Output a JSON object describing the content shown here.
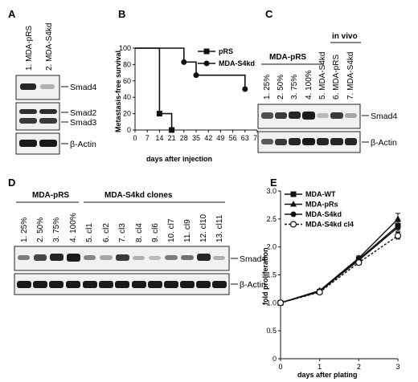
{
  "panels": {
    "A": {
      "letter": "A",
      "lanes": [
        "1. MDA-pRS",
        "2. MDA-S4kd"
      ],
      "blot_labels": [
        "Smad4",
        "Smad2",
        "Smad3",
        "β-Actin"
      ]
    },
    "C": {
      "letter": "C",
      "group_labels": [
        "MDA-pRS",
        "in vivo"
      ],
      "lanes": [
        "1. 25%",
        "2. 50%",
        "3. 75%",
        "4. 100%",
        "5. MDA-S4kd",
        "6. MDA-pRS",
        "7. MDA-S4kd"
      ],
      "blot_labels": [
        "Smad4",
        "β-Actin"
      ]
    },
    "D": {
      "letter": "D",
      "group_labels": [
        "MDA-pRS",
        "MDA-S4kd clones"
      ],
      "lanes": [
        "1. 25%",
        "2. 50%",
        "3. 75%",
        "4. 100%",
        "5. cl1",
        "6. cl2",
        "7. cl3",
        "8. cl4",
        "9. cl6",
        "10. cl7",
        "11. cl9",
        "12. cl10",
        "13. cl11"
      ],
      "blot_labels": [
        "Smad4",
        "β-Actin"
      ]
    }
  },
  "chart_data": [
    {
      "panel": "B",
      "type": "line",
      "step": true,
      "xlabel": "days after injection",
      "ylabel": "Metastasis-free survival",
      "xlim": [
        0,
        70
      ],
      "ylim": [
        0,
        100
      ],
      "xticks": [
        "0",
        "7",
        "14",
        "21",
        "28",
        "35",
        "42",
        "49",
        "56",
        "63",
        "70"
      ],
      "yticks": [
        "0",
        "20",
        "40",
        "60",
        "80",
        "100"
      ],
      "legend_position": "top-right",
      "series": [
        {
          "name": "pRS",
          "marker": "square",
          "x": [
            0,
            14,
            14,
            21,
            21
          ],
          "y": [
            100,
            100,
            20,
            20,
            0
          ],
          "points_x": [
            14,
            21
          ],
          "points_y": [
            20,
            0
          ]
        },
        {
          "name": "MDA-S4kd",
          "marker": "circle",
          "x": [
            0,
            28,
            28,
            35,
            35,
            63,
            63
          ],
          "y": [
            100,
            100,
            83,
            83,
            67,
            67,
            50
          ],
          "points_x": [
            28,
            35,
            63
          ],
          "points_y": [
            83,
            67,
            50
          ]
        }
      ]
    },
    {
      "panel": "E",
      "type": "line",
      "xlabel": "days after plating",
      "ylabel": "fold proliferation",
      "xlim": [
        0,
        3
      ],
      "ylim": [
        0,
        3
      ],
      "xticks": [
        "0",
        "1",
        "2",
        "3"
      ],
      "yticks": [
        "0",
        "0.5",
        "1.0",
        "1.5",
        "2.0",
        "2.5",
        "3.0"
      ],
      "legend_position": "top-left",
      "x": [
        0,
        1,
        2,
        3
      ],
      "series": [
        {
          "name": "MDA-WT",
          "marker": "square",
          "dashed": false,
          "values": [
            1.0,
            1.2,
            1.78,
            2.38
          ],
          "err": [
            0.02,
            0.03,
            0.04,
            0.07
          ]
        },
        {
          "name": "MDA-pRs",
          "marker": "triangle",
          "dashed": false,
          "values": [
            1.0,
            1.22,
            1.8,
            2.5
          ],
          "err": [
            0.02,
            0.03,
            0.04,
            0.1
          ]
        },
        {
          "name": "MDA-S4kd",
          "marker": "circle",
          "dashed": false,
          "values": [
            1.0,
            1.21,
            1.76,
            2.35
          ],
          "err": [
            0.02,
            0.03,
            0.04,
            0.07
          ]
        },
        {
          "name": "MDA-S4kd cl4",
          "marker": "open-circle",
          "dashed": true,
          "values": [
            1.0,
            1.19,
            1.72,
            2.2
          ],
          "err": [
            0.02,
            0.03,
            0.04,
            0.06
          ]
        }
      ]
    }
  ]
}
